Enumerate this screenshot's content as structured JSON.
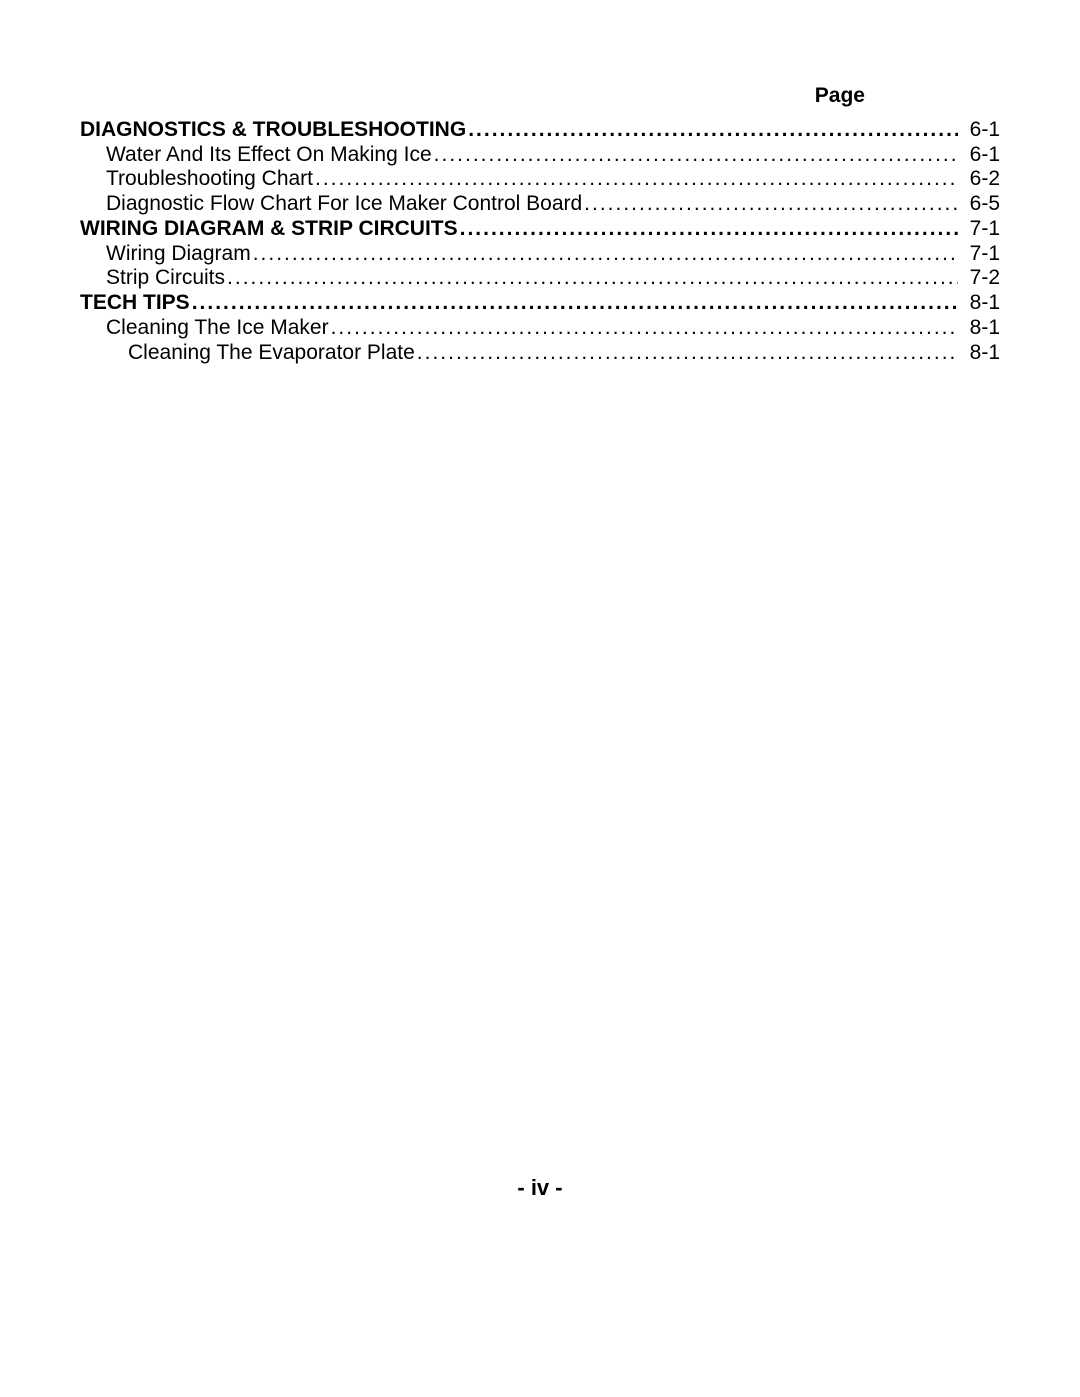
{
  "header": {
    "label": "Page"
  },
  "footer": {
    "label": "- iv -"
  },
  "toc": {
    "rows": [
      {
        "label": "DIAGNOSTICS & TROUBLESHOOTING ",
        "page": " 6-1",
        "level": 0,
        "section": true
      },
      {
        "label": "Water And Its Effect On Making Ice ",
        "page": " 6-1",
        "level": 1,
        "section": false
      },
      {
        "label": "Troubleshooting Chart",
        "page": " 6-2",
        "level": 1,
        "section": false
      },
      {
        "label": "Diagnostic Flow Chart For Ice Maker Control Board ",
        "page": " 6-5",
        "level": 1,
        "section": false
      },
      {
        "label": "WIRING DIAGRAM & STRIP CIRCUITS ",
        "page": " 7-1",
        "level": 0,
        "section": true
      },
      {
        "label": "Wiring Diagram ",
        "page": " 7-1",
        "level": 1,
        "section": false
      },
      {
        "label": "Strip Circuits",
        "page": " 7-2",
        "level": 1,
        "section": false
      },
      {
        "label": "TECH TIPS ",
        "page": " 8-1",
        "level": 0,
        "section": true
      },
      {
        "label": "Cleaning The Ice Maker",
        "page": " 8-1",
        "level": 1,
        "section": false
      },
      {
        "label": "Cleaning The Evaporator Plate",
        "page": " 8-1",
        "level": 2,
        "section": false
      }
    ]
  },
  "style": {
    "font_family": "Arial, Helvetica, sans-serif",
    "body_fontsize_pt": 16,
    "text_color": "#000000",
    "background_color": "#ffffff"
  }
}
